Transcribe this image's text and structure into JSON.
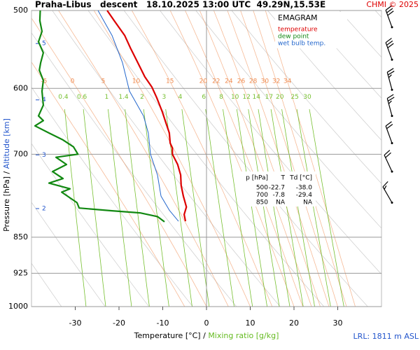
{
  "chart_data": {
    "type": "emagram",
    "title": "Praha-Libus   descent   18.10.2025 13:00 UTC  49.29N,15.53E",
    "copyright": "CHMI © 2025",
    "xlabel": "Temperature [°C]",
    "x2label": "Mixing ratio [g/kg]",
    "ylabel": "Pressure [hPa]",
    "y2label": "Altitude [km]",
    "label_separator": "/",
    "legend_title": "EMAGRAM",
    "lrl": "LRL: 1811 m ASL",
    "xlim": [
      -40,
      40
    ],
    "xticks": [
      -30,
      -20,
      -10,
      0,
      10,
      20,
      30
    ],
    "ylim": [
      1000,
      500
    ],
    "ylog": true,
    "yticks": [
      500,
      600,
      700,
      850,
      925,
      1000
    ],
    "y2ticks": [
      2,
      3,
      4,
      5
    ],
    "y2color": "#2255cc",
    "x2color": "#66bb22",
    "moist_adiabat_labels": [
      -5,
      0,
      5,
      10,
      15,
      20,
      22,
      24,
      26,
      28,
      30,
      32,
      34
    ],
    "moist_adiabat_color": "#f08c50",
    "mixing_ratio_labels": [
      0.4,
      0.6,
      1,
      1.4,
      2,
      3,
      4,
      6,
      8,
      10,
      12,
      14,
      17,
      20,
      25,
      30
    ],
    "mixing_ratio_color": "#77c030",
    "series": [
      {
        "name": "temperature",
        "color": "#dd0000",
        "y": [
          500,
          512,
          530,
          547,
          565,
          584,
          598,
          613,
          634,
          650,
          666,
          682,
          690,
          700,
          717,
          735,
          753,
          772,
          792,
          806,
          819
        ],
        "x": [
          -22.7,
          -21.1,
          -18.7,
          -17.3,
          -15.7,
          -14.1,
          -12.5,
          -11.4,
          -10.1,
          -9.3,
          -8.5,
          -8.3,
          -7.8,
          -7.8,
          -6.6,
          -5.9,
          -5.8,
          -5.3,
          -4.6,
          -5.1,
          -4.8
        ]
      },
      {
        "name": "dew point",
        "color": "#118811",
        "y": [
          500,
          512,
          525,
          538,
          552,
          565,
          575,
          589,
          604,
          624,
          640,
          647,
          655,
          666,
          677,
          688,
          700,
          705,
          717,
          729,
          741,
          749,
          759,
          765,
          784,
          794,
          799,
          803,
          810,
          820
        ],
        "x": [
          -38.0,
          -38.1,
          -37.6,
          -38.4,
          -37.3,
          -37.9,
          -38.2,
          -37.3,
          -37.6,
          -37.3,
          -38.4,
          -37.3,
          -39.2,
          -36.0,
          -32.8,
          -30.4,
          -29.4,
          -34.4,
          -32.0,
          -35.2,
          -32.8,
          -36.0,
          -31.2,
          -33.1,
          -29.6,
          -29.1,
          -21.6,
          -15.2,
          -11.2,
          -9.6
        ]
      },
      {
        "name": "wet bulb temp.",
        "color": "#2266cc",
        "y": [
          500,
          530,
          565,
          604,
          640,
          666,
          700,
          735,
          772,
          798,
          819
        ],
        "x": [
          -24.8,
          -21.6,
          -19.2,
          -17.6,
          -14.4,
          -13.3,
          -12.8,
          -11.2,
          -10.4,
          -8.5,
          -6.4
        ]
      }
    ],
    "wind": {
      "color": "#000000",
      "pressure": [
        520,
        561,
        602,
        640,
        682,
        729,
        784
      ],
      "direction": [
        340,
        340,
        345,
        345,
        340,
        335,
        330
      ],
      "speed": [
        30,
        30,
        25,
        25,
        20,
        20,
        15
      ]
    },
    "table": {
      "header": [
        "p [hPa]",
        "T",
        "Td [°C]"
      ],
      "rows": [
        [
          "500",
          "-22.7",
          "-38.0"
        ],
        [
          "700",
          "-7.8",
          "-29.4"
        ],
        [
          "850",
          "NA",
          "NA"
        ]
      ]
    }
  }
}
